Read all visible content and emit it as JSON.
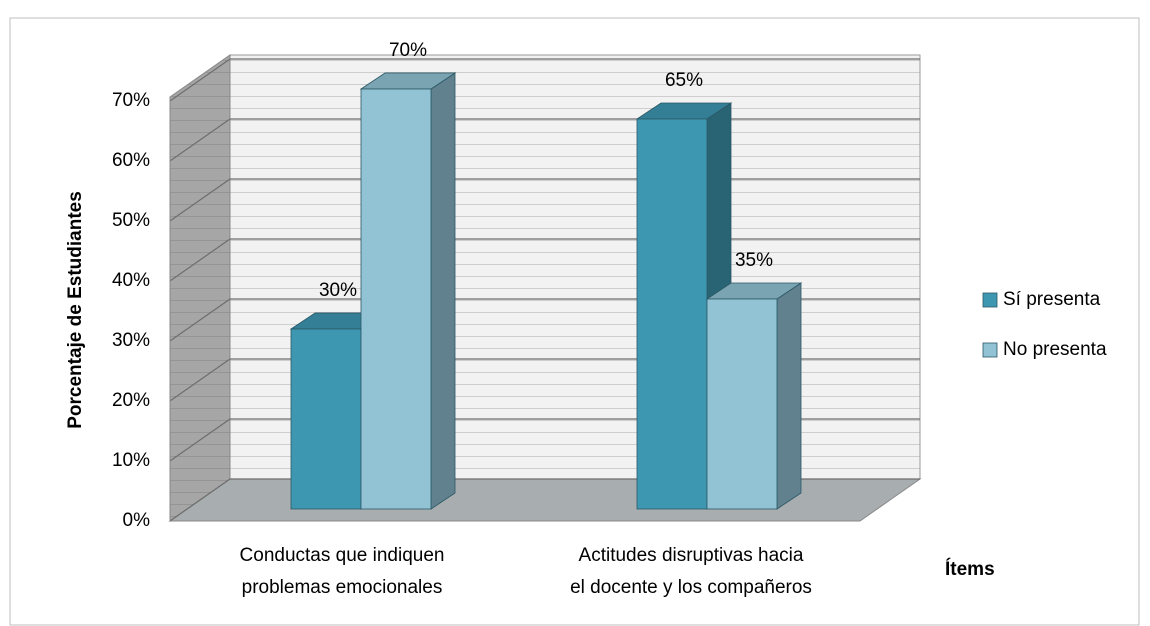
{
  "chart_data": {
    "type": "bar3d",
    "y_axis_label": "Porcentaje de Estudiantes",
    "x_axis_label": "Ítems",
    "categories": [
      [
        "Conductas que indiquen",
        "problemas emocionales"
      ],
      [
        "Actitudes disruptivas hacia",
        "el docente y los compañeros"
      ]
    ],
    "series": [
      {
        "name": "Sí presenta",
        "color": "#3e97b1",
        "values": [
          30,
          65
        ],
        "value_labels": [
          "30%",
          "65%"
        ]
      },
      {
        "name": "No presenta",
        "color": "#92c3d5",
        "values": [
          70,
          35
        ],
        "value_labels": [
          "70%",
          "35%"
        ]
      }
    ],
    "ylim": [
      0,
      70
    ],
    "yticks": [
      {
        "value": 0,
        "label": "0%"
      },
      {
        "value": 10,
        "label": "10%"
      },
      {
        "value": 20,
        "label": "20%"
      },
      {
        "value": 30,
        "label": "30%"
      },
      {
        "value": 40,
        "label": "40%"
      },
      {
        "value": 50,
        "label": "50%"
      },
      {
        "value": 60,
        "label": "60%"
      },
      {
        "value": 70,
        "label": "70%"
      }
    ],
    "grid": true,
    "legend": "right"
  }
}
